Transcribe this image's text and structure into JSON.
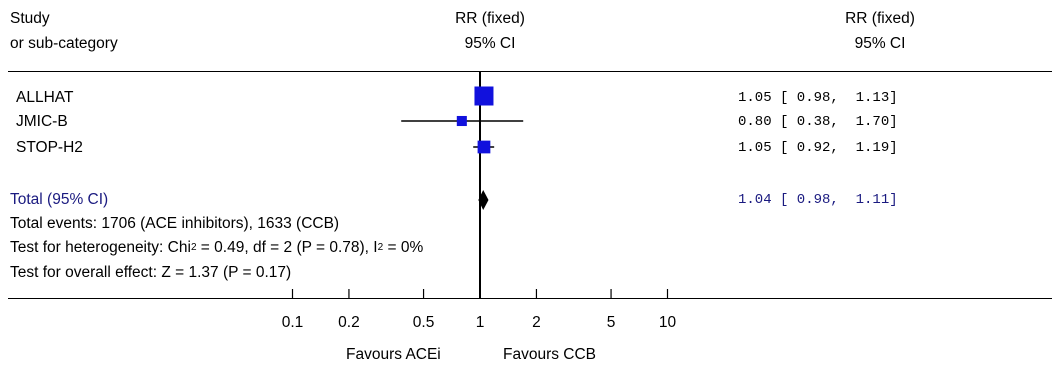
{
  "header": {
    "col1_line1": "Study",
    "col1_line2": "or sub-category",
    "col2_line1": "RR (fixed)",
    "col2_line2": "95% CI",
    "col3_line1": "RR (fixed)",
    "col3_line2": "95% CI"
  },
  "colors": {
    "study_marker": "#1111dd",
    "total_text": "#1a1a80",
    "axis": "#000000"
  },
  "chart_data": {
    "type": "forest",
    "scale": "log",
    "reference_line": 1,
    "xticks": [
      "0.1",
      "0.2",
      "0.5",
      "1",
      "2",
      "5",
      "10"
    ],
    "xtick_values": [
      0.1,
      0.2,
      0.5,
      1,
      2,
      5,
      10
    ],
    "xlim": [
      0.1,
      10
    ],
    "studies": [
      {
        "name": "ALLHAT",
        "rr": 1.05,
        "lo": 0.98,
        "hi": 1.13,
        "label": "1.05 [ 0.98,  1.13]",
        "weight": 1.0
      },
      {
        "name": "JMIC-B",
        "rr": 0.8,
        "lo": 0.38,
        "hi": 1.7,
        "label": "0.80 [ 0.38,  1.70]",
        "weight": 0.28
      },
      {
        "name": "STOP-H2",
        "rr": 1.05,
        "lo": 0.92,
        "hi": 1.19,
        "label": "1.05 [ 0.92,  1.19]",
        "weight": 0.45
      }
    ],
    "total": {
      "name": "Total (95% CI)",
      "rr": 1.04,
      "lo": 0.98,
      "hi": 1.11,
      "label": "1.04 [ 0.98,  1.11]"
    },
    "favours_left": "Favours ACEi",
    "favours_right": "Favours CCB"
  },
  "stats": {
    "total_events": "Total events: 1706 (ACE inhibitors), 1633 (CCB)",
    "het_prefix": "Test for heterogeneity: Chi",
    "het_sup": "2",
    "het_rest": " = 0.49, df = 2 (P = 0.78), I",
    "i2_sup": "2",
    "i2_rest": " = 0%",
    "overall": "Test for overall effect: Z = 1.37 (P = 0.17)"
  }
}
